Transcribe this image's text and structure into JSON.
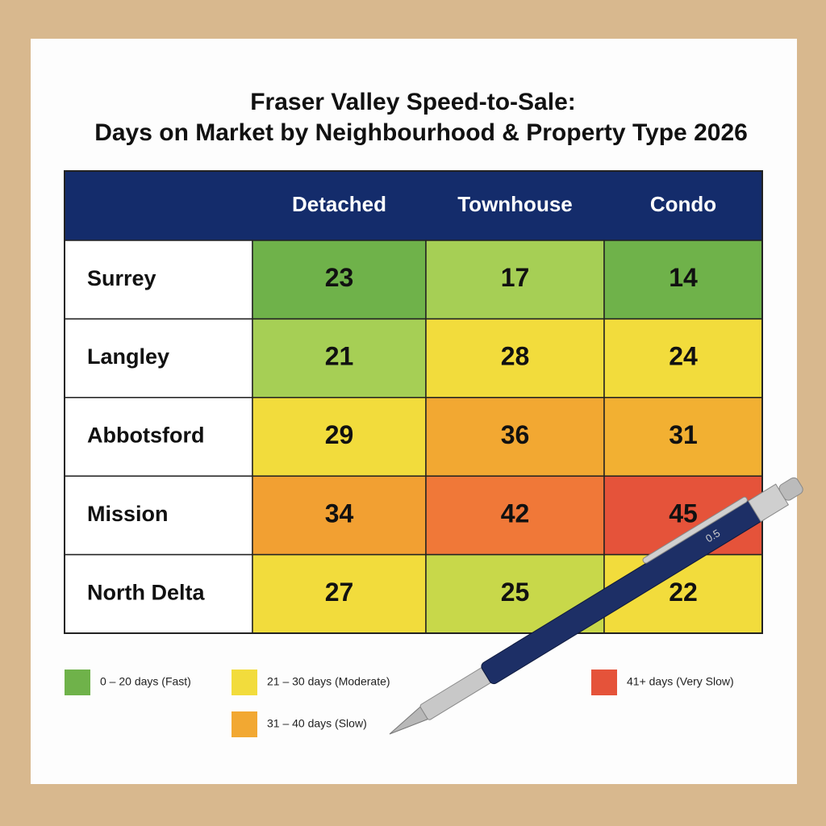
{
  "header": {
    "title_line1": "Fraser Valley Speed-to-Sale:",
    "title_line2": "Days on Market by Neighbourhood & Property Type 2026"
  },
  "table": {
    "columns": [
      "Detached",
      "Townhouse",
      "Condo"
    ],
    "rows": [
      {
        "label": "Surrey",
        "cells": [
          {
            "value": 23,
            "color": "#6fb24a"
          },
          {
            "value": 17,
            "color": "#a6cf55"
          },
          {
            "value": 14,
            "color": "#6fb24a"
          }
        ]
      },
      {
        "label": "Langley",
        "cells": [
          {
            "value": 21,
            "color": "#a6cf55"
          },
          {
            "value": 28,
            "color": "#f2dc3c"
          },
          {
            "value": 24,
            "color": "#f2dc3c"
          }
        ]
      },
      {
        "label": "Abbotsford",
        "cells": [
          {
            "value": 29,
            "color": "#f2dc3c"
          },
          {
            "value": 36,
            "color": "#f2a832"
          },
          {
            "value": 31,
            "color": "#f2b032"
          }
        ]
      },
      {
        "label": "Mission",
        "cells": [
          {
            "value": 34,
            "color": "#f2a032"
          },
          {
            "value": 42,
            "color": "#f07838"
          },
          {
            "value": 45,
            "color": "#e5533a"
          }
        ]
      },
      {
        "label": "North Delta",
        "cells": [
          {
            "value": 27,
            "color": "#f2dc3c"
          },
          {
            "value": 25,
            "color": "#c8d84a"
          },
          {
            "value": 22,
            "color": "#f2dc3c"
          }
        ]
      }
    ]
  },
  "legend": [
    {
      "label": "0 – 20 days (Fast)",
      "color": "#6fb24a"
    },
    {
      "label": "21 – 30 days (Moderate)",
      "color": "#f2dc3c"
    },
    {
      "label": "41+ days (Very Slow)",
      "color": "#e5533a"
    },
    {
      "label": "31 – 40 days (Slow)",
      "color": "#f2a832"
    }
  ],
  "pen": {
    "label": "0.5"
  }
}
